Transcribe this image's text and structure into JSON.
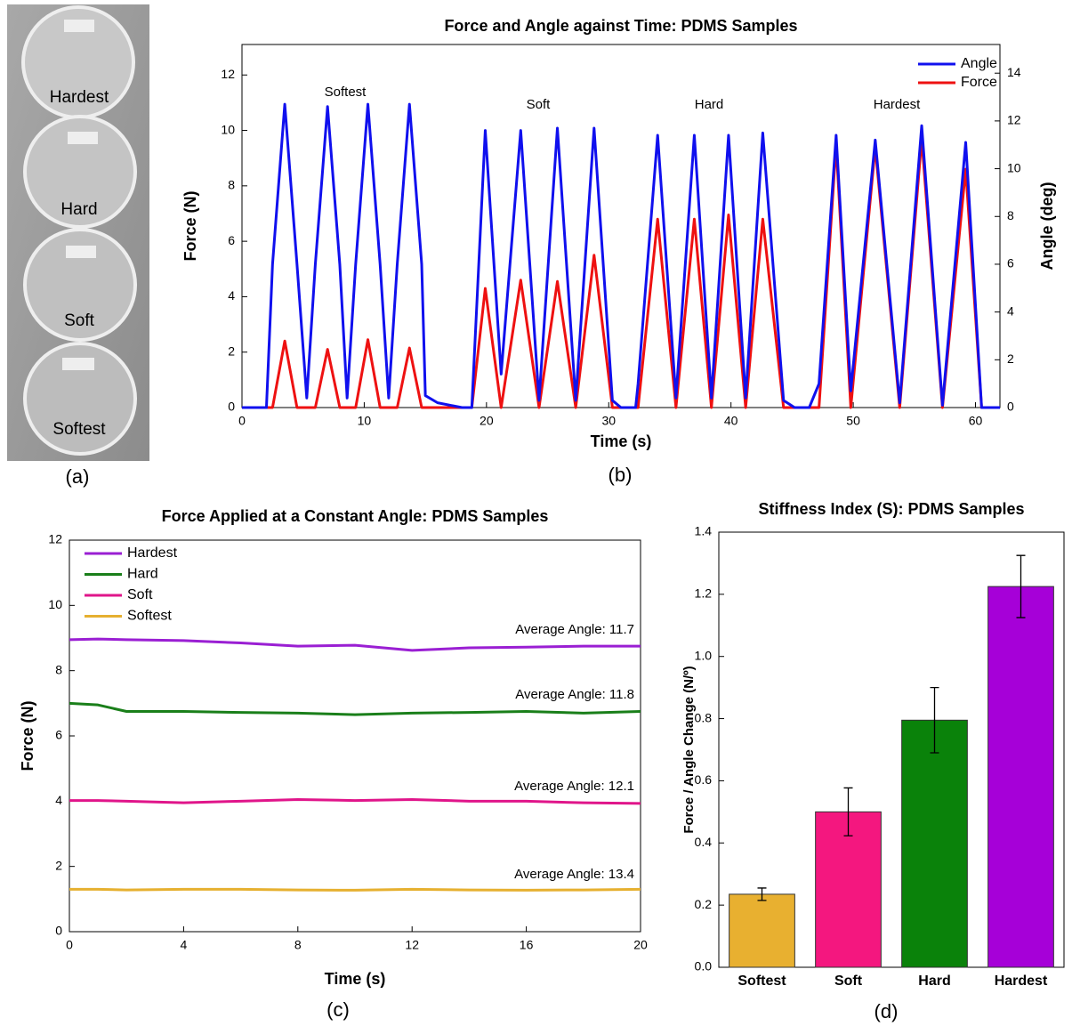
{
  "photo_labels": [
    {
      "text": "Hardest",
      "color": "#8a2be2"
    },
    {
      "text": "Hard",
      "color": "#3c8a3c"
    },
    {
      "text": "Soft",
      "color": "#d020c8"
    },
    {
      "text": "Softest",
      "color": "#8a6a10"
    }
  ],
  "panel_labels": [
    "(a)",
    "(b)",
    "(c)",
    "(d)"
  ],
  "chart_data": [
    {
      "type": "line",
      "title": "Force and Angle against Time: PDMS Samples",
      "xlabel": "Time (s)",
      "ylabel": "Force (N)",
      "ylabel_color": "#ee1111",
      "y2label": "Angle (deg)",
      "y2label_color": "#1010ee",
      "xlim": [
        0,
        62
      ],
      "xticks": [
        0,
        10,
        20,
        30,
        40,
        50,
        60
      ],
      "ylim": [
        0,
        13.1
      ],
      "yticks": [
        0,
        2,
        4,
        6,
        8,
        10,
        12
      ],
      "y2lim": [
        0,
        15.2
      ],
      "y2ticks": [
        0,
        2,
        4,
        6,
        8,
        10,
        12,
        14
      ],
      "legend": "upper right",
      "x": [
        0,
        2,
        2.5,
        3.5,
        4.5,
        5.3,
        6,
        7,
        8,
        8.6,
        9.3,
        10.3,
        11.3,
        12,
        12.7,
        13.7,
        14.7,
        15,
        16,
        18,
        18.8,
        19.9,
        21.2,
        22.8,
        24.3,
        25.8,
        27.3,
        28.8,
        30.3,
        31,
        32.2,
        32.4,
        34,
        35.5,
        37,
        38.4,
        39.8,
        41.2,
        42.6,
        44.3,
        45.2,
        46.4,
        47.2,
        48.6,
        49.8,
        51.8,
        53.8,
        55.6,
        57.3,
        59.2,
        60.5,
        62
      ],
      "series": [
        {
          "name": "Angle",
          "color": "#1010ee",
          "axis": "y2",
          "values": [
            0,
            0,
            6,
            12.7,
            6,
            0.4,
            6,
            12.6,
            6,
            0.4,
            6,
            12.7,
            6,
            0.4,
            6,
            12.7,
            6,
            0.5,
            0.2,
            0,
            0,
            11.6,
            1.4,
            11.6,
            0.3,
            11.7,
            0.3,
            11.7,
            0.3,
            0,
            0,
            1,
            11.4,
            0.4,
            11.4,
            0.4,
            11.4,
            0.4,
            11.5,
            0.3,
            0,
            0,
            1,
            11.4,
            0.7,
            11.2,
            0.2,
            11.8,
            0.1,
            11.1,
            0,
            0
          ]
        },
        {
          "name": "Force",
          "color": "#ee1111",
          "values": [
            0,
            0,
            0,
            2.4,
            0,
            0,
            0,
            2.1,
            0,
            0,
            0,
            2.45,
            0,
            0,
            0,
            2.15,
            0,
            0,
            0,
            0,
            0,
            4.3,
            0,
            4.6,
            0,
            4.55,
            0,
            5.5,
            0,
            0,
            0,
            0,
            6.8,
            0,
            6.8,
            0,
            6.95,
            0,
            6.8,
            0,
            0,
            0,
            0,
            9.5,
            0,
            9.4,
            0,
            9.7,
            0,
            8.6,
            0,
            0
          ]
        }
      ],
      "annotations": [
        {
          "text": "Softest",
          "color": "#e6b030"
        },
        {
          "text": "Soft",
          "color": "#e0158a"
        },
        {
          "text": "Hard",
          "color": "#1a8a1a"
        },
        {
          "text": "Hardest",
          "color": "#9a1fd3"
        }
      ]
    },
    {
      "type": "line",
      "title": "Force Applied at a Constant Angle: PDMS Samples",
      "xlabel": "Time (s)",
      "ylabel": "Force (N)",
      "ylabel_color": "#ee1111",
      "xlim": [
        0,
        20
      ],
      "xticks": [
        0,
        4,
        8,
        12,
        16,
        20
      ],
      "ylim": [
        0,
        12
      ],
      "yticks": [
        0,
        2,
        4,
        6,
        8,
        10,
        12
      ],
      "legend": "upper left",
      "x": [
        0,
        1,
        2,
        4,
        6,
        8,
        10,
        12,
        14,
        16,
        18,
        20
      ],
      "series": [
        {
          "name": "Hardest",
          "color": "#9a1fd3",
          "values": [
            8.95,
            8.97,
            8.95,
            8.92,
            8.85,
            8.75,
            8.78,
            8.62,
            8.7,
            8.72,
            8.75,
            8.75
          ]
        },
        {
          "name": "Hard",
          "color": "#1a7f1a",
          "values": [
            7.0,
            6.95,
            6.75,
            6.75,
            6.72,
            6.7,
            6.65,
            6.7,
            6.72,
            6.75,
            6.7,
            6.75
          ]
        },
        {
          "name": "Soft",
          "color": "#e0158a",
          "values": [
            4.02,
            4.02,
            4.0,
            3.95,
            4.0,
            4.05,
            4.02,
            4.05,
            4.0,
            4.0,
            3.95,
            3.93
          ]
        },
        {
          "name": "Softest",
          "color": "#e6b030",
          "values": [
            1.3,
            1.3,
            1.28,
            1.3,
            1.3,
            1.28,
            1.27,
            1.3,
            1.28,
            1.27,
            1.28,
            1.3
          ]
        }
      ],
      "annotations": [
        {
          "text": "Average Angle: 11.7",
          "color": "#9a1fd3"
        },
        {
          "text": "Average Angle: 11.8",
          "color": "#1a7f1a"
        },
        {
          "text": "Average Angle: 12.1",
          "color": "#e0158a"
        },
        {
          "text": "Average Angle: 13.4",
          "color": "#e6b030"
        }
      ]
    },
    {
      "type": "bar",
      "title": "Stiffness Index (S): PDMS Samples",
      "ylabel": "Force / Angle Change (N/º)",
      "categories": [
        "Softest",
        "Soft",
        "Hard",
        "Hardest"
      ],
      "values": [
        0.235,
        0.5,
        0.795,
        1.225
      ],
      "errors": [
        0.02,
        0.077,
        0.105,
        0.1
      ],
      "colors": [
        "#e8b030",
        "#f4177f",
        "#0a820a",
        "#a600d8"
      ],
      "ylim": [
        0,
        1.4
      ],
      "yticks": [
        {
          "value": 0,
          "label": "0.0"
        },
        0.2,
        0.4,
        0.6,
        0.8,
        {
          "value": 1,
          "label": "1.0"
        },
        1.2,
        1.4
      ]
    }
  ]
}
